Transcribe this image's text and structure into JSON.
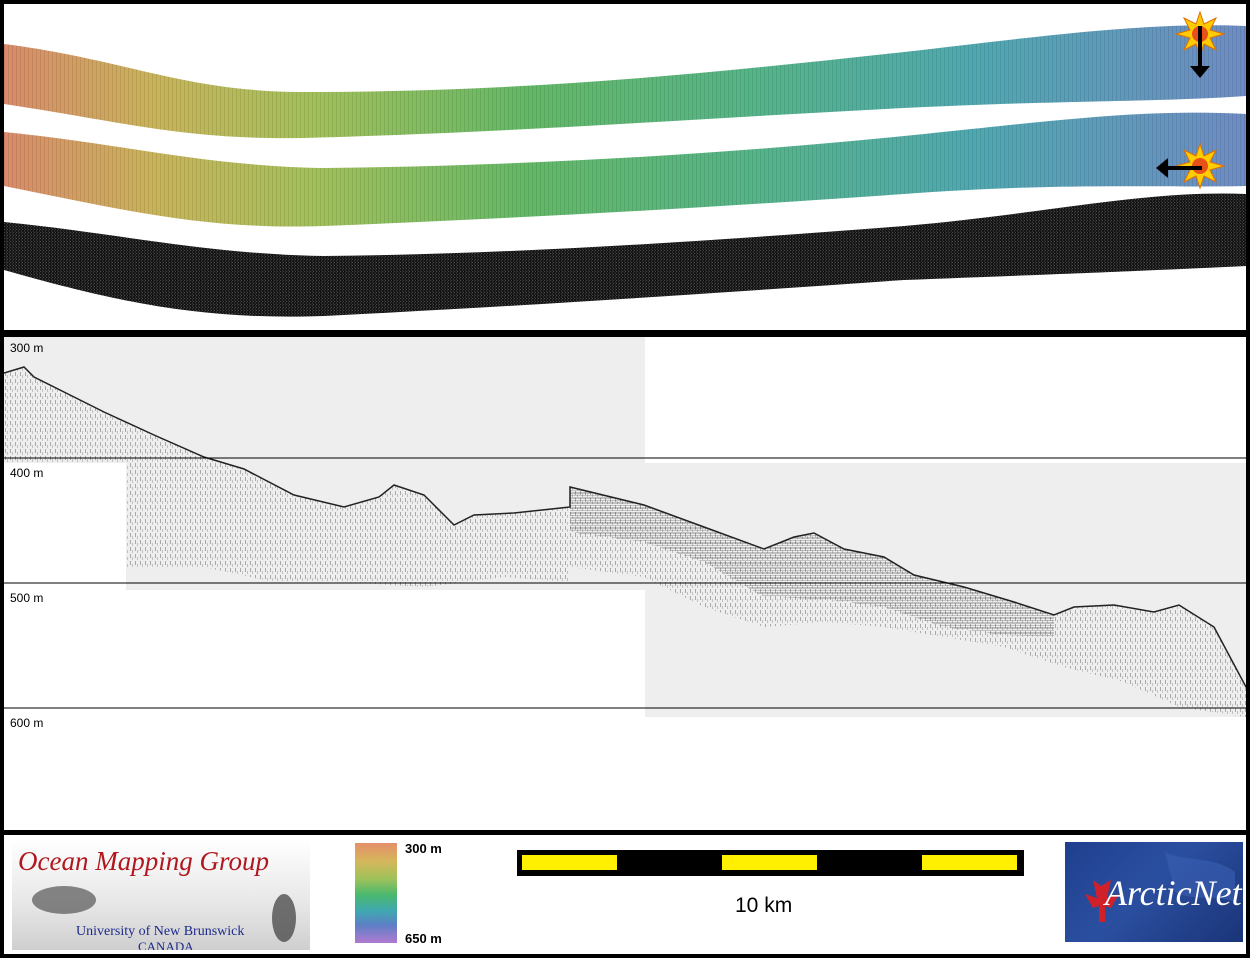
{
  "profile": {
    "depth_labels": [
      "300 m",
      "400 m",
      "500 m",
      "600 m"
    ]
  },
  "footer": {
    "logo_omg": {
      "title": "Ocean Mapping Group",
      "university": "University of New Brunswick",
      "country": "CANADA"
    },
    "colorbar": {
      "min_label": "300 m",
      "max_label": "650 m"
    },
    "scale": {
      "label": "10 km",
      "bar_color": "#ffef00"
    },
    "logo_arctic": {
      "text": "ArcticNet"
    }
  },
  "colors": {
    "background": "#000000",
    "panel": "#ffffff",
    "sun_marker": "#ffcc00",
    "omg_red": "#b0171f",
    "omg_blue": "#1d2a8a"
  }
}
